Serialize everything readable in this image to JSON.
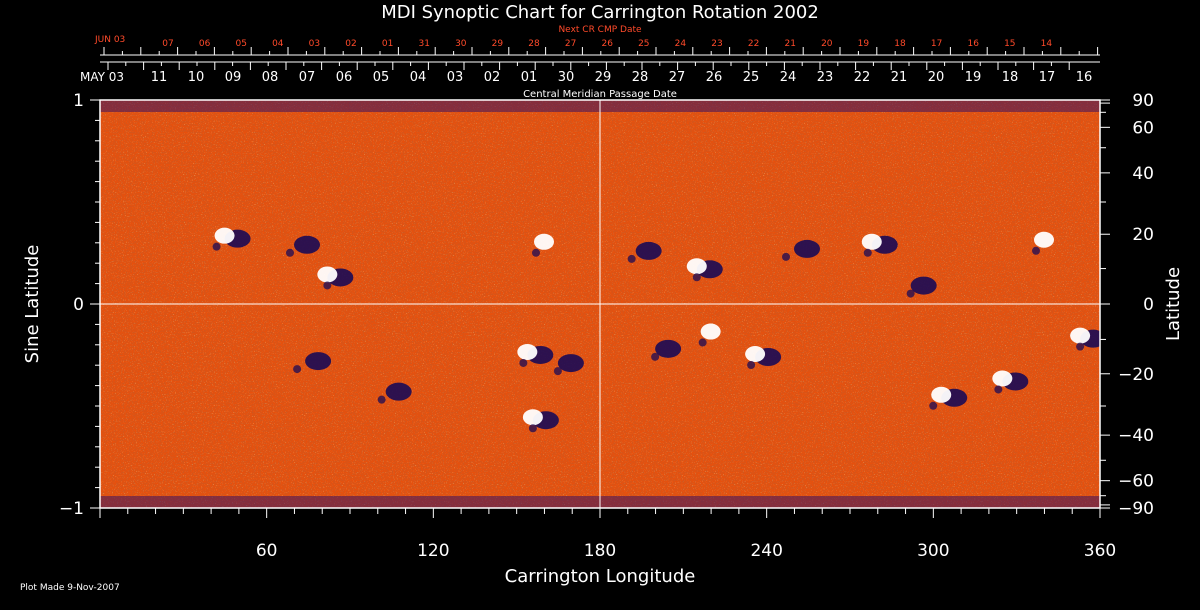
{
  "chart_data": {
    "type": "heatmap",
    "title": "MDI Synoptic Chart for Carrington Rotation 2002",
    "top_axis_red_label": "Next CR CMP Date",
    "top_axis_white_label": "Central Meridian Passage Date",
    "red_month_label": "JUN 03",
    "white_month_label": "MAY 03",
    "red_date_ticks": [
      "07",
      "06",
      "05",
      "04",
      "03",
      "02",
      "01",
      "31",
      "30",
      "29",
      "28",
      "27",
      "26",
      "25",
      "24",
      "23",
      "22",
      "21",
      "20",
      "19",
      "18",
      "17",
      "16",
      "15",
      "14"
    ],
    "white_date_ticks": [
      "11",
      "10",
      "09",
      "08",
      "07",
      "06",
      "05",
      "04",
      "03",
      "02",
      "01",
      "30",
      "29",
      "28",
      "27",
      "26",
      "25",
      "24",
      "23",
      "22",
      "21",
      "20",
      "19",
      "18",
      "17",
      "16"
    ],
    "xlabel": "Carrington Longitude",
    "ylabel_left": "Sine Latitude",
    "ylabel_right": "Latitude",
    "xlim": [
      0,
      360
    ],
    "ylim": [
      -1,
      1
    ],
    "x_ticks": [
      60,
      120,
      180,
      240,
      300,
      360
    ],
    "x_tick_labels": [
      "60",
      "120",
      "180",
      "240",
      "300",
      "360"
    ],
    "left_ticks": [
      1,
      0,
      -1
    ],
    "left_tick_labels": [
      "1",
      "0",
      "−1"
    ],
    "right_ticks": [
      90,
      60,
      40,
      20,
      0,
      -20,
      -40,
      -60,
      -90
    ],
    "right_tick_labels": [
      "90",
      "60",
      "40",
      "20",
      "0",
      "−20",
      "−40",
      "−60",
      "−90"
    ],
    "grid_lines": {
      "longitude": 180,
      "sine_latitude": 0
    },
    "active_regions": [
      {
        "lon": 47,
        "sinlat": 0.33,
        "polarity": "mixed"
      },
      {
        "lon": 72,
        "sinlat": 0.3,
        "polarity": "negative"
      },
      {
        "lon": 84,
        "sinlat": 0.14,
        "polarity": "mixed"
      },
      {
        "lon": 162,
        "sinlat": 0.3,
        "polarity": "positive"
      },
      {
        "lon": 195,
        "sinlat": 0.27,
        "polarity": "negative"
      },
      {
        "lon": 217,
        "sinlat": 0.18,
        "polarity": "mixed"
      },
      {
        "lon": 252,
        "sinlat": 0.28,
        "polarity": "negative"
      },
      {
        "lon": 280,
        "sinlat": 0.3,
        "polarity": "mixed"
      },
      {
        "lon": 294,
        "sinlat": 0.1,
        "polarity": "negative"
      },
      {
        "lon": 342,
        "sinlat": 0.31,
        "polarity": "positive"
      },
      {
        "lon": 156,
        "sinlat": -0.24,
        "polarity": "mixed"
      },
      {
        "lon": 167,
        "sinlat": -0.28,
        "polarity": "negative"
      },
      {
        "lon": 76,
        "sinlat": -0.27,
        "polarity": "negative"
      },
      {
        "lon": 105,
        "sinlat": -0.42,
        "polarity": "negative"
      },
      {
        "lon": 158,
        "sinlat": -0.56,
        "polarity": "mixed"
      },
      {
        "lon": 222,
        "sinlat": -0.14,
        "polarity": "positive"
      },
      {
        "lon": 238,
        "sinlat": -0.25,
        "polarity": "mixed"
      },
      {
        "lon": 202,
        "sinlat": -0.21,
        "polarity": "negative"
      },
      {
        "lon": 305,
        "sinlat": -0.45,
        "polarity": "mixed"
      },
      {
        "lon": 327,
        "sinlat": -0.37,
        "polarity": "mixed"
      },
      {
        "lon": 355,
        "sinlat": -0.16,
        "polarity": "mixed"
      }
    ],
    "colors": {
      "background": "#000000",
      "field_base": "#e8500c",
      "positive": "#ffffff",
      "negative": "#1a0a55",
      "red_axis": "#ff4a2a"
    }
  },
  "footer": {
    "plot_made": "Plot Made  9-Nov-2007"
  }
}
